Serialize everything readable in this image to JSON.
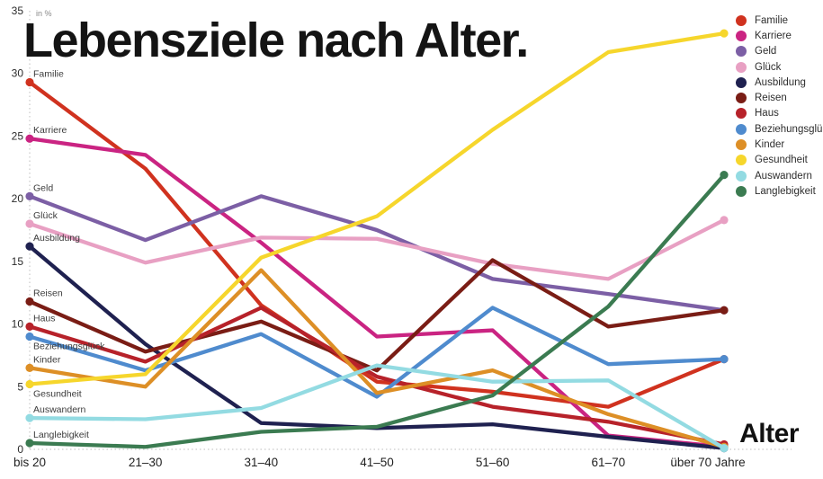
{
  "header": {
    "title": "Lebensziele nach Alter."
  },
  "chart_data": {
    "type": "line",
    "title": "Lebensziele nach Alter.",
    "ylabel_note": "in %",
    "xlabel": "Alter",
    "ylim": [
      0,
      35
    ],
    "yticks": [
      0,
      5,
      10,
      15,
      20,
      25,
      30,
      35
    ],
    "categories": [
      "bis 20",
      "21–30",
      "31–40",
      "41–50",
      "51–60",
      "61–70",
      "über 70 Jahre"
    ],
    "grid": "axis-dotted",
    "legend_position": "top-right",
    "series": [
      {
        "name": "Familie",
        "color": "#d0321f",
        "label_dy": -6,
        "values": [
          29.3,
          22.4,
          11.5,
          5.4,
          4.6,
          3.4,
          7.2
        ]
      },
      {
        "name": "Karriere",
        "color": "#ca2482",
        "label_dy": -6,
        "values": [
          24.8,
          23.5,
          16.5,
          9.0,
          9.5,
          1.1,
          0.2
        ]
      },
      {
        "name": "Geld",
        "color": "#7c5fa5",
        "label_dy": -6,
        "values": [
          20.2,
          16.7,
          20.2,
          17.5,
          13.6,
          12.4,
          11.1
        ]
      },
      {
        "name": "Glück",
        "color": "#e8a0c3",
        "label_dy": -6,
        "values": [
          18.0,
          14.9,
          16.9,
          16.8,
          14.8,
          13.6,
          18.3
        ]
      },
      {
        "name": "Ausbildung",
        "color": "#1f2150",
        "label_dy": -6,
        "values": [
          16.2,
          8.4,
          2.1,
          1.7,
          2.0,
          1.0,
          0.1
        ]
      },
      {
        "name": "Reisen",
        "color": "#7a1d15",
        "label_dy": -6,
        "values": [
          11.8,
          7.8,
          10.2,
          6.3,
          15.1,
          9.8,
          11.1
        ]
      },
      {
        "name": "Haus",
        "color": "#b7222a",
        "label_dy": -6,
        "values": [
          9.8,
          7.0,
          11.3,
          5.8,
          3.4,
          2.2,
          0.4
        ]
      },
      {
        "name": "Beziehungsglück",
        "color": "#4f8bce",
        "label_dy": 14,
        "values": [
          9.0,
          6.3,
          9.2,
          4.2,
          11.3,
          6.8,
          7.2
        ]
      },
      {
        "name": "Kinder",
        "color": "#dd8f26",
        "label_dy": -6,
        "values": [
          6.5,
          5.0,
          14.3,
          4.5,
          6.3,
          2.8,
          0.2
        ]
      },
      {
        "name": "Gesundheit",
        "color": "#f6d62c",
        "label_dy": 14,
        "values": [
          5.2,
          6.0,
          15.3,
          18.6,
          25.5,
          31.7,
          33.2
        ]
      },
      {
        "name": "Auswandern",
        "color": "#93dbe2",
        "label_dy": -6,
        "values": [
          2.5,
          2.4,
          3.3,
          6.7,
          5.4,
          5.5,
          0.1
        ]
      },
      {
        "name": "Langlebigkeit",
        "color": "#3b7b51",
        "label_dy": -6,
        "values": [
          0.5,
          0.2,
          1.4,
          1.8,
          4.3,
          11.4,
          21.9
        ]
      }
    ]
  }
}
